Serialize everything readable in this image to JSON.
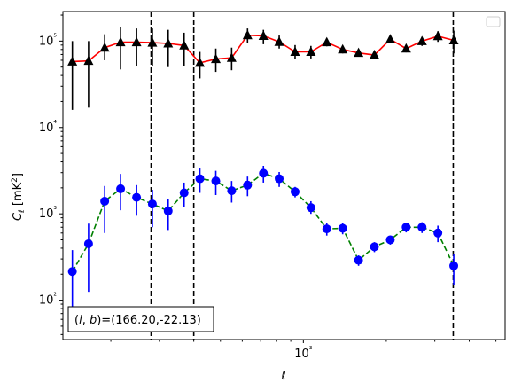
{
  "chart_data": {
    "type": "line",
    "xscale": "log",
    "yscale": "log",
    "xlabel": "ℓ",
    "ylabel": "Cℓ  [mK²]",
    "xlim": [
      134,
      5400
    ],
    "ylim": [
      35,
      220000
    ],
    "xticks": [
      {
        "value": 1000,
        "label": "10³"
      }
    ],
    "yticks": [
      {
        "value": 100,
        "label": "10²"
      },
      {
        "value": 1000,
        "label": "10³"
      },
      {
        "value": 10000,
        "label": "10⁴"
      },
      {
        "value": 100000,
        "label": "10⁵"
      }
    ],
    "grid": false,
    "legend": {
      "placement": "top-right",
      "entries": []
    },
    "annotation": "(l, b)=(166.20,-22.13)",
    "vlines": [
      {
        "x": 280,
        "style": "dashed",
        "color": "#000000"
      },
      {
        "x": 400,
        "style": "dashed",
        "color": "#000000"
      },
      {
        "x": 3500,
        "style": "dashed",
        "color": "#000000"
      }
    ],
    "series": [
      {
        "marker": "triangle",
        "marker_color": "#000000",
        "line_color": "#ff0000",
        "line_style": "solid",
        "points": [
          {
            "x": 145,
            "y": 58000,
            "lo": 16000,
            "hi": 100000
          },
          {
            "x": 166,
            "y": 59000,
            "lo": 17000,
            "hi": 100000
          },
          {
            "x": 190,
            "y": 84000,
            "lo": 60000,
            "hi": 120000
          },
          {
            "x": 217,
            "y": 97000,
            "lo": 47000,
            "hi": 145000
          },
          {
            "x": 248,
            "y": 97000,
            "lo": 52000,
            "hi": 140000
          },
          {
            "x": 283,
            "y": 96000,
            "lo": 52000,
            "hi": 140000
          },
          {
            "x": 323,
            "y": 94000,
            "lo": 50000,
            "hi": 135000
          },
          {
            "x": 369,
            "y": 89000,
            "lo": 51000,
            "hi": 125000
          },
          {
            "x": 421,
            "y": 56000,
            "lo": 37000,
            "hi": 75000
          },
          {
            "x": 481,
            "y": 62000,
            "lo": 44000,
            "hi": 82000
          },
          {
            "x": 549,
            "y": 64000,
            "lo": 46000,
            "hi": 84000
          },
          {
            "x": 627,
            "y": 117000,
            "lo": 95000,
            "hi": 140000
          },
          {
            "x": 716,
            "y": 115000,
            "lo": 92000,
            "hi": 135000
          },
          {
            "x": 817,
            "y": 98000,
            "lo": 82000,
            "hi": 116000
          },
          {
            "x": 933,
            "y": 75000,
            "lo": 62000,
            "hi": 90000
          },
          {
            "x": 1065,
            "y": 75000,
            "lo": 63000,
            "hi": 88000
          },
          {
            "x": 1216,
            "y": 97000,
            "lo": 87000,
            "hi": 108000
          },
          {
            "x": 1389,
            "y": 80000,
            "lo": 72000,
            "hi": 89000
          },
          {
            "x": 1586,
            "y": 73000,
            "lo": 66000,
            "hi": 80000
          },
          {
            "x": 1811,
            "y": 69000,
            "lo": 63000,
            "hi": 75000
          },
          {
            "x": 2068,
            "y": 105000,
            "lo": 97000,
            "hi": 113000
          },
          {
            "x": 2361,
            "y": 82000,
            "lo": 74000,
            "hi": 90000
          },
          {
            "x": 2696,
            "y": 100000,
            "lo": 88000,
            "hi": 112000
          },
          {
            "x": 3079,
            "y": 114000,
            "lo": 98000,
            "hi": 130000
          },
          {
            "x": 3515,
            "y": 102000,
            "lo": 72000,
            "hi": 132000
          }
        ]
      },
      {
        "marker": "circle",
        "marker_color": "#0000ff",
        "line_color": "#008000",
        "line_style": "dashed",
        "points": [
          {
            "x": 145,
            "y": 215,
            "lo": 55,
            "hi": 380
          },
          {
            "x": 166,
            "y": 450,
            "lo": 125,
            "hi": 770
          },
          {
            "x": 190,
            "y": 1400,
            "lo": 600,
            "hi": 2100
          },
          {
            "x": 217,
            "y": 1950,
            "lo": 1100,
            "hi": 2900
          },
          {
            "x": 248,
            "y": 1550,
            "lo": 950,
            "hi": 2150
          },
          {
            "x": 283,
            "y": 1300,
            "lo": 700,
            "hi": 1900
          },
          {
            "x": 323,
            "y": 1080,
            "lo": 650,
            "hi": 1500
          },
          {
            "x": 369,
            "y": 1750,
            "lo": 1200,
            "hi": 2300
          },
          {
            "x": 421,
            "y": 2550,
            "lo": 1750,
            "hi": 3350
          },
          {
            "x": 481,
            "y": 2400,
            "lo": 1650,
            "hi": 3150
          },
          {
            "x": 549,
            "y": 1850,
            "lo": 1350,
            "hi": 2400
          },
          {
            "x": 627,
            "y": 2150,
            "lo": 1600,
            "hi": 2700
          },
          {
            "x": 716,
            "y": 2950,
            "lo": 2300,
            "hi": 3600
          },
          {
            "x": 817,
            "y": 2550,
            "lo": 2050,
            "hi": 3050
          },
          {
            "x": 933,
            "y": 1800,
            "lo": 1550,
            "hi": 2050
          },
          {
            "x": 1065,
            "y": 1180,
            "lo": 1000,
            "hi": 1400
          },
          {
            "x": 1216,
            "y": 670,
            "lo": 560,
            "hi": 780
          },
          {
            "x": 1389,
            "y": 680,
            "lo": 580,
            "hi": 780
          },
          {
            "x": 1586,
            "y": 290,
            "lo": 250,
            "hi": 330
          },
          {
            "x": 1811,
            "y": 415,
            "lo": 360,
            "hi": 470
          },
          {
            "x": 2068,
            "y": 500,
            "lo": 440,
            "hi": 560
          },
          {
            "x": 2361,
            "y": 700,
            "lo": 610,
            "hi": 790
          },
          {
            "x": 2696,
            "y": 700,
            "lo": 600,
            "hi": 800
          },
          {
            "x": 3079,
            "y": 600,
            "lo": 470,
            "hi": 730
          },
          {
            "x": 3515,
            "y": 250,
            "lo": 150,
            "hi": 340
          }
        ]
      }
    ]
  }
}
